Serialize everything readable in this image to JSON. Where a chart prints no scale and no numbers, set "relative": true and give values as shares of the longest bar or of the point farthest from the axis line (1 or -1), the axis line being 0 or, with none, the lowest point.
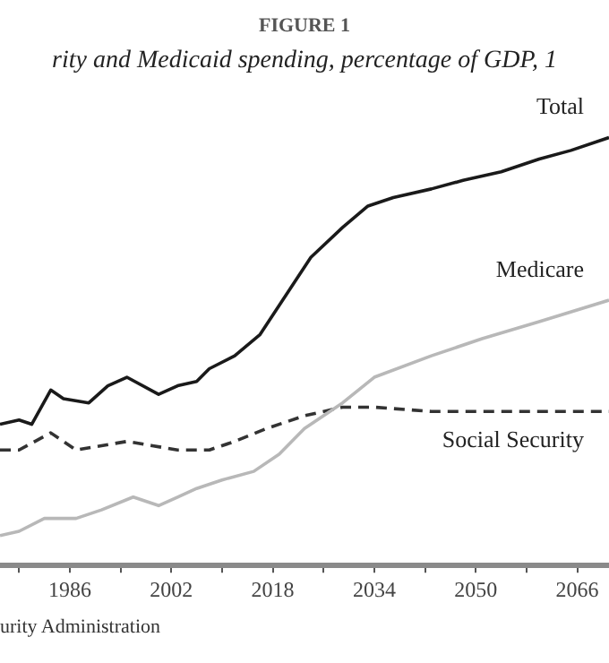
{
  "chart_data": {
    "type": "line",
    "title": "FIGURE 1",
    "subtitle": "rity and Medicaid spending, percentage of GDP, 1",
    "relative": true,
    "xlim": [
      1975,
      2071
    ],
    "xticks": [
      {
        "value": 1978,
        "label": null
      },
      1986,
      {
        "value": 1994,
        "label": null
      },
      2002,
      {
        "value": 2010,
        "label": null
      },
      2018,
      {
        "value": 2026,
        "label": null
      },
      2034,
      {
        "value": 2042,
        "label": null
      },
      2050,
      {
        "value": 2058,
        "label": null
      },
      2066
    ],
    "series": [
      {
        "name": "Total",
        "color": "#1a1a1a",
        "x": [
          1975,
          1978,
          1980,
          1983,
          1985,
          1989,
          1992,
          1995,
          2000,
          2003,
          2006,
          2008,
          2012,
          2016,
          2020,
          2024,
          2029,
          2033,
          2037,
          2043,
          2048,
          2054,
          2060,
          2065,
          2071
        ],
        "values": [
          0.33,
          0.34,
          0.33,
          0.41,
          0.39,
          0.38,
          0.42,
          0.44,
          0.4,
          0.42,
          0.43,
          0.46,
          0.49,
          0.54,
          0.63,
          0.72,
          0.79,
          0.84,
          0.86,
          0.88,
          0.9,
          0.92,
          0.95,
          0.97,
          1.0
        ]
      },
      {
        "name": "Medicare",
        "color": "#b8b8b8",
        "x": [
          1975,
          1978,
          1982,
          1987,
          1991,
          1996,
          2000,
          2003,
          2006,
          2010,
          2015,
          2019,
          2023,
          2029,
          2034,
          2043,
          2051,
          2060,
          2071
        ],
        "values": [
          0.07,
          0.08,
          0.11,
          0.11,
          0.13,
          0.16,
          0.14,
          0.16,
          0.18,
          0.2,
          0.22,
          0.26,
          0.32,
          0.38,
          0.44,
          0.49,
          0.53,
          0.57,
          0.62
        ]
      },
      {
        "name": "Social Security",
        "color": "#333333",
        "line_style": "dashed",
        "x": [
          1975,
          1978,
          1983,
          1987,
          1991,
          1995,
          1999,
          2003,
          2008,
          2012,
          2017,
          2023,
          2029,
          2034,
          2043,
          2054,
          2071
        ],
        "values": [
          0.27,
          0.27,
          0.31,
          0.27,
          0.28,
          0.29,
          0.28,
          0.27,
          0.27,
          0.29,
          0.32,
          0.35,
          0.37,
          0.37,
          0.36,
          0.36,
          0.36
        ]
      }
    ],
    "legend": false,
    "grid": false,
    "marker": "none",
    "annotations": [
      "urity Administration"
    ]
  }
}
